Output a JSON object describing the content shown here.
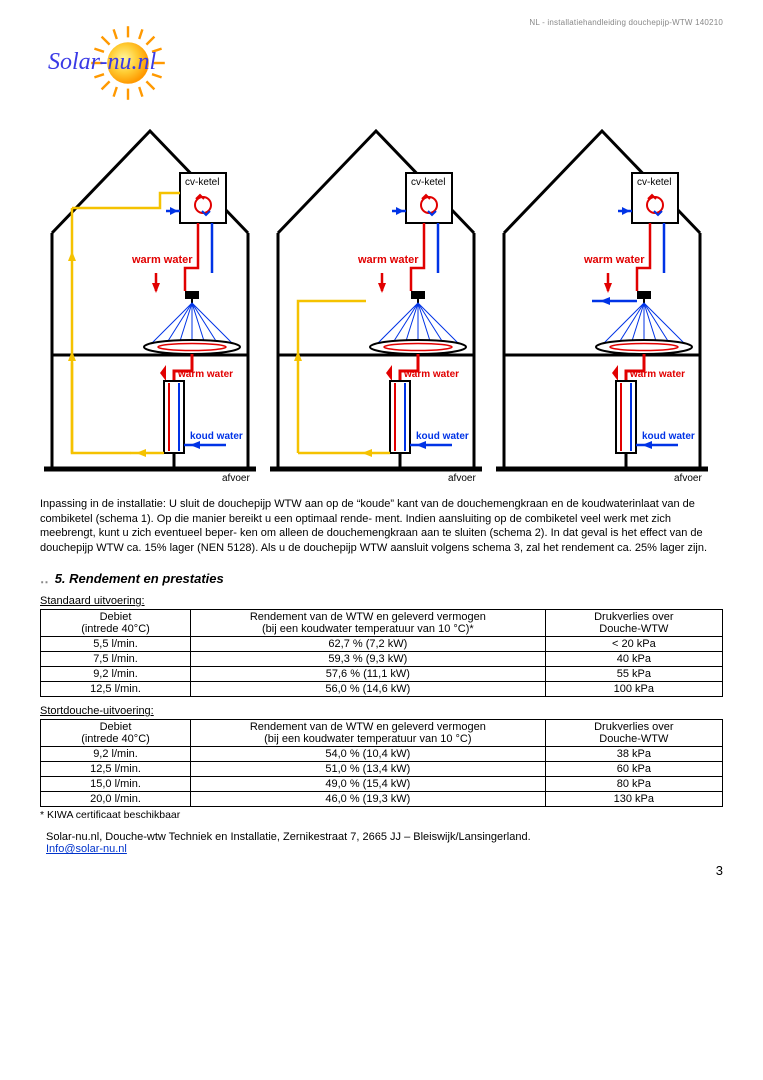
{
  "header_small": "NL - installatiehandleiding douchepijp-WTW 140210",
  "logo_text": "Solar-nu.nl",
  "diagram": {
    "cv_ketel": "cv-ketel",
    "warm_water": "warm water",
    "koud_water": "koud water",
    "afvoer": "afvoer",
    "colors": {
      "hot": "#e10000",
      "cold": "#0033e6",
      "yellow": "#f5c200",
      "outline": "#000000"
    }
  },
  "body_text": "Inpassing in de installatie: U sluit de douchepijp WTW aan op de “koude” kant van de douchemengkraan en de koudwaterinlaat van de combiketel (schema 1). Op die manier bereikt u een optimaal rende- ment. Indien aansluiting op de combiketel veel werk met zich meebrengt, kunt u zich eventueel beper- ken om alleen de douchemengkraan aan te sluiten (schema 2). In dat geval is het effect van de douchepijp WTW ca. 15% lager (NEN 5128). Als u de douchepijp WTW aansluit volgens schema 3, zal het rendement ca. 25% lager zijn.",
  "section_title": "5. Rendement en prestaties",
  "table1": {
    "label": "Standaard uitvoering:",
    "headers": {
      "c1a": "Debiet",
      "c1b": "(intrede 40°C)",
      "c2a": "Rendement van de WTW en geleverd vermogen",
      "c2b": "(bij een koudwater temperatuur van 10 °C)*",
      "c3a": "Drukverlies over",
      "c3b": "Douche-WTW"
    },
    "rows": [
      [
        "5,5 l/min.",
        "62,7 % (7,2 kW)",
        "< 20 kPa"
      ],
      [
        "7,5 l/min.",
        "59,3 % (9,3 kW)",
        "40 kPa"
      ],
      [
        "9,2 l/min.",
        "57,6 % (11,1 kW)",
        "55 kPa"
      ],
      [
        "12,5 l/min.",
        "56,0 % (14,6 kW)",
        "100 kPa"
      ]
    ]
  },
  "table2": {
    "label": "Stortdouche-uitvoering:",
    "headers": {
      "c1a": "Debiet",
      "c1b": "(intrede 40°C)",
      "c2a": "Rendement van de WTW en geleverd vermogen",
      "c2b": "(bij een koudwater temperatuur van 10 °C)",
      "c3a": "Drukverlies over",
      "c3b": "Douche-WTW"
    },
    "rows": [
      [
        "9,2 l/min.",
        "54,0 % (10,4 kW)",
        "38 kPa"
      ],
      [
        "12,5 l/min.",
        "51,0 % (13,4 kW)",
        "60 kPa"
      ],
      [
        "15,0 l/min.",
        "49,0 % (15,4 kW)",
        "80 kPa"
      ],
      [
        "20,0 l/min.",
        "46,0 % (19,3 kW)",
        "130 kPa"
      ]
    ]
  },
  "footnote": "* KIWA certificaat beschikbaar",
  "footer_line": "Solar-nu.nl, Douche-wtw Techniek en Installatie, Zernikestraat 7, 2665 JJ – Bleiswijk/Lansingerland.",
  "footer_email": "Info@solar-nu.nl",
  "page_num": "3",
  "col_widths": {
    "c1": "22%",
    "c2": "52%",
    "c3": "26%"
  }
}
